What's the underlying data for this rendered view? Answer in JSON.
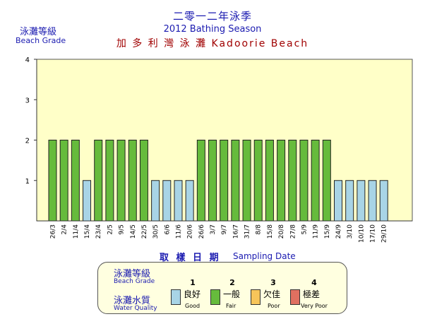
{
  "title": {
    "zh": "二零一二年泳季",
    "en": "2012 Bathing Season",
    "beach": "加 多 利 灣 泳 灘  Kadoorie Beach"
  },
  "y_axis_label": {
    "zh": "泳灘等級",
    "en": "Beach Grade"
  },
  "x_axis_label": {
    "zh": "取 樣 日 期",
    "en": "Sampling Date"
  },
  "legend": {
    "grade_zh": "泳灘等級",
    "grade_en": "Beach Grade",
    "wq_zh": "泳灘水質",
    "wq_en": "Water Quality",
    "items": [
      {
        "num": "1",
        "zh": "良好",
        "en": "Good",
        "color": "#a8d4e6"
      },
      {
        "num": "2",
        "zh": "一般",
        "en": "Fair",
        "color": "#66bb3c"
      },
      {
        "num": "3",
        "zh": "欠佳",
        "en": "Poor",
        "color": "#f7c55a"
      },
      {
        "num": "4",
        "zh": "極差",
        "en": "Very Poor",
        "color": "#e07060"
      }
    ]
  },
  "chart_data": {
    "type": "bar",
    "categories": [
      "26/3",
      "2/4",
      "11/4",
      "15/4",
      "23/4",
      "2/5",
      "9/5",
      "14/5",
      "22/5",
      "30/5",
      "6/6",
      "11/6",
      "20/6",
      "26/6",
      "3/7",
      "9/7",
      "16/7",
      "31/7",
      "8/8",
      "15/8",
      "20/8",
      "27/8",
      "5/9",
      "11/9",
      "15/9",
      "24/9",
      "3/10",
      "10/10",
      "17/10",
      "29/10"
    ],
    "values": [
      2,
      2,
      2,
      1,
      2,
      2,
      2,
      2,
      2,
      1,
      1,
      1,
      1,
      2,
      2,
      2,
      2,
      2,
      2,
      2,
      2,
      2,
      2,
      2,
      2,
      1,
      1,
      1,
      1,
      1
    ],
    "ylim": [
      0,
      4
    ],
    "yticks": [
      1,
      2,
      3,
      4
    ],
    "grade_colors": {
      "1": "#a8d4e6",
      "2": "#66bb3c",
      "3": "#f7c55a",
      "4": "#e07060"
    },
    "plot_background": "#ffffc8"
  }
}
